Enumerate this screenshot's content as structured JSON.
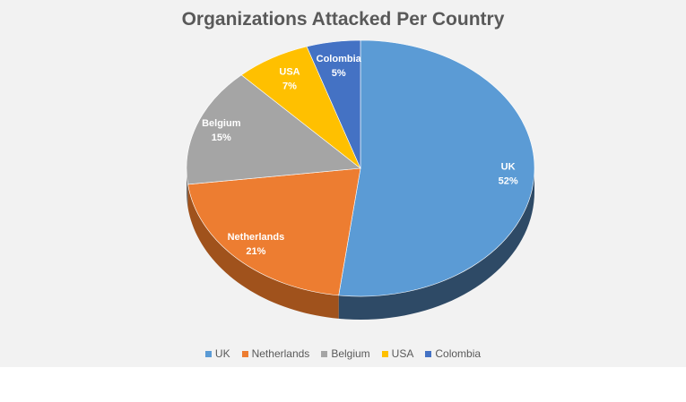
{
  "chart_data": {
    "type": "pie",
    "style": "3d",
    "title": "Organizations Attacked Per Country",
    "legend_position": "bottom",
    "slices": [
      {
        "label": "UK",
        "value": 52,
        "value_label": "52%",
        "color": "#5b9bd5",
        "side_color": "#2e4a66"
      },
      {
        "label": "Netherlands",
        "value": 21,
        "value_label": "21%",
        "color": "#ed7d31",
        "side_color": "#a0521c"
      },
      {
        "label": "Belgium",
        "value": 15,
        "value_label": "15%",
        "color": "#a5a5a5",
        "side_color": "#6e6e6e"
      },
      {
        "label": "USA",
        "value": 7,
        "value_label": "7%",
        "color": "#ffc000",
        "side_color": "#b08400"
      },
      {
        "label": "Colombia",
        "value": 5,
        "value_label": "5%",
        "color": "#4472c4",
        "side_color": "#2a4780"
      }
    ]
  }
}
